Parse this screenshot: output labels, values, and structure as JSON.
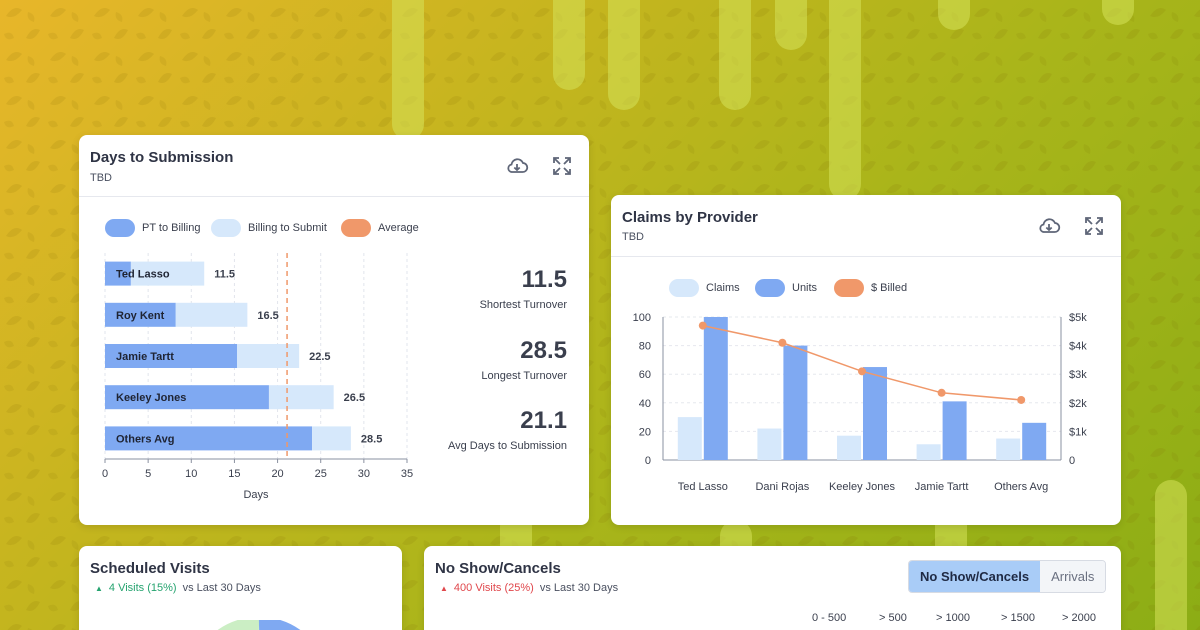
{
  "colors": {
    "primary_bar": "#7fa9f2",
    "secondary_bar": "#d6e8fb",
    "average": "#f0986a",
    "positive": "#25a36f",
    "negative": "#e0474c"
  },
  "icons": {
    "download": "cloud-download-icon",
    "expand": "expand-icon"
  },
  "days_card": {
    "title": "Days to Submission",
    "subtitle": "TBD",
    "legend": [
      "PT to Billing",
      "Billing to Submit",
      "Average"
    ],
    "stats": [
      {
        "value": "11.5",
        "label": "Shortest Turnover"
      },
      {
        "value": "28.5",
        "label": "Longest Turnover"
      },
      {
        "value": "21.1",
        "label": "Avg Days to Submission"
      }
    ]
  },
  "claims_card": {
    "title": "Claims by Provider",
    "subtitle": "TBD",
    "legend": [
      "Claims",
      "Units",
      "$ Billed"
    ]
  },
  "visits_card": {
    "title": "Scheduled Visits",
    "delta_text": "4 Visits (15%)",
    "delta_suffix": "vs Last 30 Days"
  },
  "noshow_card": {
    "title": "No Show/Cancels",
    "delta_text": "400 Visits (25%)",
    "delta_suffix": "vs Last 30 Days",
    "toggle": [
      "No Show/Cancels",
      "Arrivals"
    ],
    "ranges": [
      "0 - 500",
      "> 500",
      "> 1000",
      "> 1500",
      "> 2000"
    ]
  },
  "chart_data": [
    {
      "type": "bar",
      "orientation": "horizontal",
      "stacked": true,
      "categories": [
        "Ted Lasso",
        "Roy Kent",
        "Jamie Tartt",
        "Keeley Jones",
        "Others Avg"
      ],
      "series": [
        {
          "name": "PT to Billing",
          "values": [
            3,
            8.2,
            15.3,
            19,
            24
          ]
        },
        {
          "name": "Billing to Submit",
          "values": [
            8.5,
            8.3,
            7.2,
            7.5,
            4.5
          ]
        }
      ],
      "totals": [
        "11.5",
        "16.5",
        "22.5",
        "26.5",
        "28.5"
      ],
      "average": 21.1,
      "average_label": "Average",
      "xlabel": "Days",
      "xlim": [
        0,
        35
      ],
      "xticks": [
        "0",
        "5",
        "10",
        "15",
        "20",
        "25",
        "30",
        "35"
      ],
      "grid": true,
      "legend_position": "top-left"
    },
    {
      "type": "bar",
      "categories": [
        "Ted Lasso",
        "Dani Rojas",
        "Keeley Jones",
        "Jamie Tartt",
        "Others Avg"
      ],
      "series": [
        {
          "name": "Claims",
          "values": [
            30,
            22,
            17,
            11,
            15
          ]
        },
        {
          "name": "Units",
          "values": [
            100,
            80,
            65,
            41,
            26
          ]
        },
        {
          "name": "$ Billed",
          "type": "line",
          "axis": "right",
          "values": [
            4700,
            4100,
            3100,
            2350,
            2100
          ]
        }
      ],
      "ylim": [
        0,
        100
      ],
      "yticks": [
        "0",
        "20",
        "40",
        "60",
        "80",
        "100"
      ],
      "y2lim": [
        0,
        5000
      ],
      "y2ticks": [
        "0",
        "$1k",
        "$2k",
        "$3k",
        "$4k",
        "$5k"
      ],
      "grid": true,
      "legend_position": "top"
    }
  ]
}
